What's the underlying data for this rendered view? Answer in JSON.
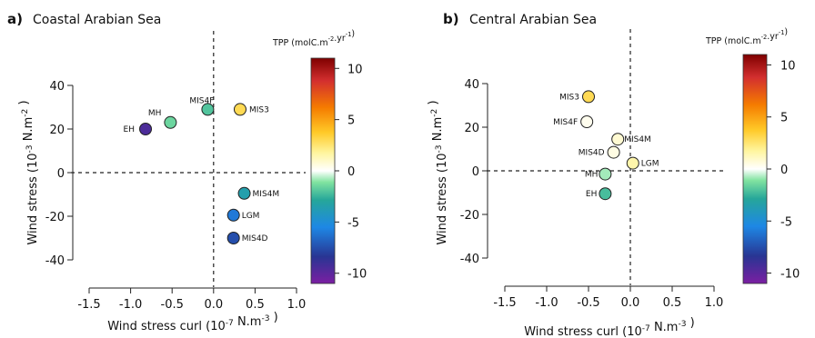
{
  "chart_data": [
    {
      "type": "scatter",
      "letter": "a)",
      "title": "Coastal Arabian Sea",
      "xlabel": "Wind stress curl (10",
      "xlabel_exp": "-7",
      "xlabel_unit": " N.m",
      "xlabel_unit_exp": "-3",
      "xlabel_end": " )",
      "ylabel": "Wind stress (10",
      "ylabel_exp": "-3",
      "ylabel_unit": " N.m",
      "ylabel_unit_exp": "-2",
      "ylabel_end": " )",
      "xlim": [
        -1.5,
        1.0
      ],
      "ylim": [
        -40,
        40
      ],
      "xticks": [
        "-1.5",
        "-1.0",
        "-0.5",
        "0.0",
        "0.5",
        "1.0"
      ],
      "yticks": [
        "-40",
        "-20",
        "0",
        "20",
        "40"
      ],
      "reference_lines": {
        "x": 0,
        "y": 0
      },
      "grid": false,
      "colorbar": {
        "title": "TPP (molC.m",
        "title_exp1": "-2",
        "title_mid": ".yr",
        "title_exp2": "-1",
        "title_end": ")",
        "range": [
          -11,
          11
        ],
        "ticks": [
          "10",
          "5",
          "0",
          "-5",
          "-10"
        ],
        "colormap": "diverging rainbow (purple-blue-green-white-yellow-orange-red)"
      },
      "points": [
        {
          "label": "EH",
          "x": -0.82,
          "y": 20,
          "tpp": -9.5
        },
        {
          "label": "MH",
          "x": -0.52,
          "y": 23,
          "tpp": -1.5
        },
        {
          "label": "MIS4F",
          "x": -0.07,
          "y": 29,
          "tpp": -2.0
        },
        {
          "label": "MIS3",
          "x": 0.32,
          "y": 29,
          "tpp": 3.0
        },
        {
          "label": "MIS4M",
          "x": 0.37,
          "y": -9.5,
          "tpp": -3.5
        },
        {
          "label": "LGM",
          "x": 0.24,
          "y": -19.5,
          "tpp": -6.0
        },
        {
          "label": "MIS4D",
          "x": 0.24,
          "y": -30,
          "tpp": -7.5
        }
      ]
    },
    {
      "type": "scatter",
      "letter": "b)",
      "title": "Central Arabian Sea",
      "xlabel": "Wind stress curl (10",
      "xlabel_exp": "-7",
      "xlabel_unit": " N.m",
      "xlabel_unit_exp": "-3",
      "xlabel_end": " )",
      "ylabel": "Wind stress (10",
      "ylabel_exp": "-3",
      "ylabel_unit": " N.m",
      "ylabel_unit_exp": "-2",
      "ylabel_end": " )",
      "xlim": [
        -1.5,
        1.0
      ],
      "ylim": [
        -40,
        40
      ],
      "xticks": [
        "-1.5",
        "-1.0",
        "-0.5",
        "0.0",
        "0.5",
        "1.0"
      ],
      "yticks": [
        "-40",
        "-20",
        "0",
        "20",
        "40"
      ],
      "reference_lines": {
        "x": 0,
        "y": 0
      },
      "grid": false,
      "colorbar": {
        "title": "TPP (molC.m",
        "title_exp1": "-2",
        "title_mid": ".yr",
        "title_exp2": "-1",
        "title_end": ")",
        "range": [
          -11,
          11
        ],
        "ticks": [
          "10",
          "5",
          "0",
          "-5",
          "-10"
        ],
        "colormap": "diverging rainbow (purple-blue-green-white-yellow-orange-red)"
      },
      "points": [
        {
          "label": "MIS3",
          "x": -0.5,
          "y": 34,
          "tpp": 3.0
        },
        {
          "label": "MIS4F",
          "x": -0.52,
          "y": 22.5,
          "tpp": 0.3
        },
        {
          "label": "MIS4M",
          "x": -0.15,
          "y": 14.5,
          "tpp": 0.8
        },
        {
          "label": "MIS4D",
          "x": -0.2,
          "y": 8.5,
          "tpp": 0.5
        },
        {
          "label": "LGM",
          "x": 0.03,
          "y": 3.5,
          "tpp": 1.5
        },
        {
          "label": "MH",
          "x": -0.3,
          "y": -1.5,
          "tpp": -0.8
        },
        {
          "label": "EH",
          "x": -0.3,
          "y": -10.5,
          "tpp": -2.2
        }
      ]
    }
  ]
}
